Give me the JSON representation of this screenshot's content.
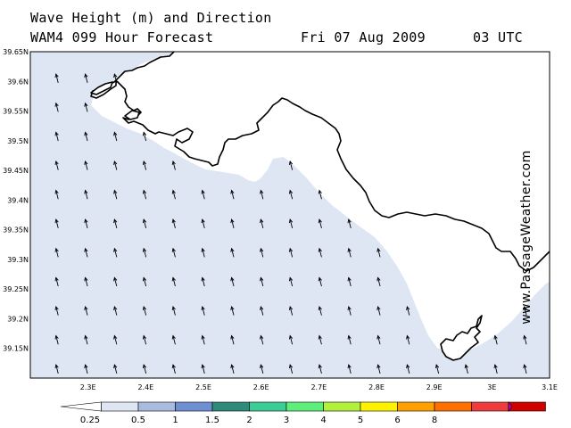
{
  "title": {
    "line1": "Wave Height (m) and Direction",
    "line2": "WAM4 099 Hour Forecast",
    "date": "Fri 07 Aug 2009",
    "time": "03 UTC"
  },
  "watermark": "www.PassageWeather.com",
  "colors": {
    "land": "#ffffff",
    "sea_025_05": "#dfe6f3",
    "coastline": "#000000",
    "arrow": "#000000",
    "frame": "#000000"
  },
  "map": {
    "lon_range": [
      2.2,
      3.1
    ],
    "lat_range": [
      39.1,
      39.65
    ],
    "lon_ticks": [
      "2.3E",
      "2.4E",
      "2.5E",
      "2.6E",
      "2.7E",
      "2.8E",
      "2.9E",
      "3E",
      "3.1E"
    ],
    "lat_ticks": [
      "39.65N",
      "39.6N",
      "39.55N",
      "39.5N",
      "39.45N",
      "39.4N",
      "39.35N",
      "39.3N",
      "39.25N",
      "39.2N",
      "39.15N"
    ],
    "wave_direction": "from south-southeast (arrows point north-northwest)",
    "dominant_wave_height_band": "0.25 - 0.5 m"
  },
  "legend": {
    "colors": [
      "#ffffff",
      "#dfe6f3",
      "#a9bcdf",
      "#6e8fd2",
      "#2e8b7a",
      "#3ccc96",
      "#5cf07a",
      "#b2f03c",
      "#fff200",
      "#ffa000",
      "#ff6f00",
      "#ef3b3b",
      "#d00000",
      "#c000c0"
    ],
    "labels": [
      "0.25",
      "0.5",
      "1",
      "1.5",
      "2",
      "3",
      "4",
      "5",
      "6",
      "8"
    ]
  },
  "chart_data": {
    "type": "heatmap",
    "title": "Wave Height (m) and Direction",
    "subtitle": "WAM4 099 Hour Forecast",
    "xlabel": "",
    "ylabel": "",
    "x_ticks": [
      "2.3E",
      "2.4E",
      "2.5E",
      "2.6E",
      "2.7E",
      "2.8E",
      "2.9E",
      "3E",
      "3.1E"
    ],
    "y_ticks": [
      "39.65N",
      "39.6N",
      "39.55N",
      "39.5N",
      "39.45N",
      "39.4N",
      "39.35N",
      "39.3N",
      "39.25N",
      "39.2N",
      "39.15N"
    ],
    "scale_breaks": [
      0.25,
      0.5,
      1,
      1.5,
      2,
      3,
      4,
      5,
      6,
      8
    ],
    "grid": false
  }
}
